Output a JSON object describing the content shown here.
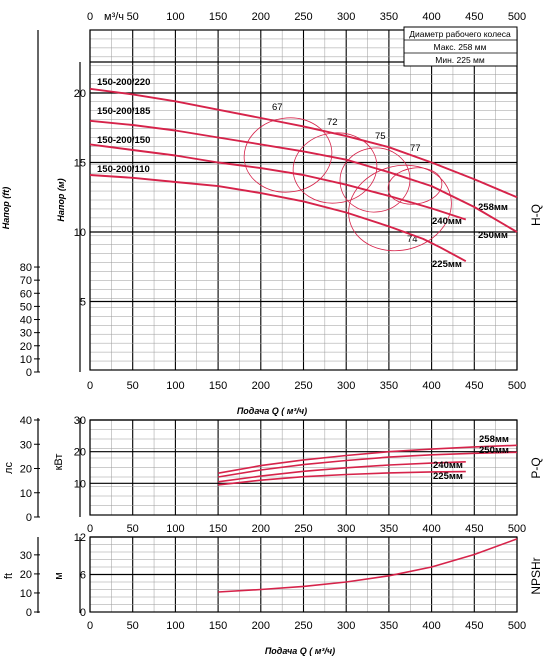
{
  "colors": {
    "curve": "#d6234a",
    "grid_major": "#000000",
    "grid_minor": "#9a9a9a"
  },
  "chart_data": [
    {
      "id": "hq",
      "type": "line",
      "side_label": "H-Q",
      "ylabel_left": "Напор (ft)",
      "ylabel_inner": "Напор (м)",
      "top_axis_unit": "м³/ч",
      "xlabel": "",
      "xlim": [
        0,
        500
      ],
      "ylim_m": [
        0,
        25
      ],
      "x_ticks": [
        0,
        50,
        100,
        150,
        200,
        250,
        300,
        350,
        400,
        450,
        500
      ],
      "top_x_ticks": [
        "0",
        "50",
        "100",
        "150",
        "200",
        "250",
        "300",
        "350",
        "400",
        "450",
        "500"
      ],
      "ft_ticks": [
        0,
        10,
        20,
        30,
        40,
        50,
        60,
        70,
        80
      ],
      "m_ticks": [
        5,
        10,
        15,
        20
      ],
      "legend": {
        "title": "Диаметр рабочего колеса",
        "max": "Макс. 258 мм",
        "min": "Мин.  225 мм"
      },
      "series": [
        {
          "name": "150-200/220",
          "end_label": "258мм",
          "x": [
            0,
            50,
            100,
            150,
            200,
            250,
            300,
            350,
            400,
            450,
            500
          ],
          "y": [
            20.3,
            19.9,
            19.4,
            18.8,
            18.2,
            17.6,
            16.9,
            16.1,
            15.0,
            13.8,
            12.5
          ]
        },
        {
          "name": "150-200/185",
          "end_label": "250мм",
          "x": [
            0,
            50,
            100,
            150,
            200,
            250,
            300,
            350,
            400,
            450,
            500
          ],
          "y": [
            18.0,
            17.7,
            17.3,
            16.8,
            16.3,
            15.8,
            15.2,
            14.3,
            13.3,
            11.8,
            10.0
          ]
        },
        {
          "name": "150-200/150",
          "end_label": "240мм",
          "x": [
            0,
            50,
            100,
            150,
            200,
            250,
            300,
            350,
            400,
            440
          ],
          "y": [
            16.3,
            15.9,
            15.5,
            15.0,
            14.6,
            14.1,
            13.4,
            12.6,
            11.7,
            10.9
          ]
        },
        {
          "name": "150-200/110",
          "end_label": "225мм",
          "x": [
            0,
            50,
            100,
            150,
            200,
            250,
            300,
            350,
            390,
            410,
            440
          ],
          "y": [
            14.1,
            13.9,
            13.6,
            13.3,
            12.8,
            12.2,
            11.4,
            10.4,
            9.5,
            8.9,
            7.9
          ]
        }
      ],
      "efficiency_labels": [
        "67",
        "72",
        "75",
        "77",
        "74"
      ]
    },
    {
      "id": "pq",
      "type": "line",
      "side_label": "P-Q",
      "xlabel": "Подача Q ( м³/ч)",
      "ylabel_left": "лс",
      "ylabel_inner": "кВт",
      "xlim": [
        0,
        500
      ],
      "ylim_kw": [
        0,
        30
      ],
      "x_ticks": [
        0,
        50,
        100,
        150,
        200,
        250,
        300,
        350,
        400,
        450,
        500
      ],
      "hp_ticks": [
        0,
        10,
        20,
        30,
        40
      ],
      "kw_ticks": [
        10,
        20,
        30
      ],
      "series": [
        {
          "name": "258мм",
          "x": [
            150,
            200,
            250,
            300,
            350,
            400,
            450,
            500
          ],
          "y": [
            13.2,
            15.6,
            17.4,
            18.8,
            20.0,
            20.8,
            21.5,
            22.0
          ]
        },
        {
          "name": "250мм",
          "x": [
            150,
            200,
            250,
            300,
            350,
            400,
            450,
            500
          ],
          "y": [
            12.0,
            14.2,
            15.9,
            17.2,
            18.3,
            19.0,
            19.5,
            19.8
          ]
        },
        {
          "name": "240мм",
          "x": [
            150,
            200,
            250,
            300,
            350,
            400,
            440
          ],
          "y": [
            10.5,
            12.3,
            13.8,
            14.9,
            15.8,
            16.4,
            16.8
          ]
        },
        {
          "name": "225мм",
          "x": [
            150,
            200,
            250,
            300,
            350,
            400,
            440
          ],
          "y": [
            9.5,
            11.0,
            12.1,
            12.8,
            13.3,
            13.6,
            13.7
          ]
        }
      ]
    },
    {
      "id": "npsh",
      "type": "line",
      "side_label": "NPSHr",
      "xlabel": "Подача Q ( м³/ч)",
      "ylabel_left": "ft",
      "ylabel_inner": "м",
      "xlim": [
        0,
        500
      ],
      "ylim_m": [
        0,
        12
      ],
      "x_ticks": [
        0,
        50,
        100,
        150,
        200,
        250,
        300,
        350,
        400,
        450,
        500
      ],
      "ft_ticks": [
        0,
        10,
        20,
        30
      ],
      "m_ticks": [
        0,
        6,
        12
      ],
      "series": [
        {
          "name": "NPSHr",
          "x": [
            150,
            200,
            250,
            300,
            350,
            400,
            450,
            500
          ],
          "y": [
            3.2,
            3.6,
            4.1,
            4.8,
            5.8,
            7.2,
            9.2,
            11.7
          ]
        }
      ]
    }
  ]
}
